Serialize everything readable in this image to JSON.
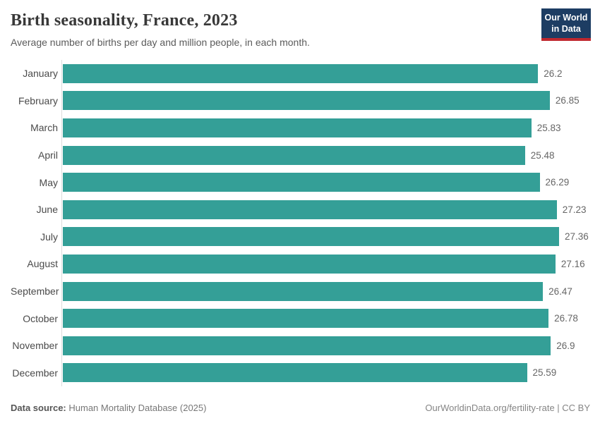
{
  "header": {
    "title": "Birth seasonality, France, 2023",
    "subtitle": "Average number of births per day and million people, in each month.",
    "logo": {
      "line1": "Our World",
      "line2": "in Data"
    }
  },
  "chart_data": {
    "type": "bar",
    "orientation": "horizontal",
    "title": "Birth seasonality, France, 2023",
    "subtitle": "Average number of births per day and million people, in each month.",
    "categories": [
      "January",
      "February",
      "March",
      "April",
      "May",
      "June",
      "July",
      "August",
      "September",
      "October",
      "November",
      "December"
    ],
    "values": [
      26.2,
      26.85,
      25.83,
      25.48,
      26.29,
      27.23,
      27.36,
      27.16,
      26.47,
      26.78,
      26.9,
      25.59
    ],
    "value_labels": [
      "26.2",
      "26.85",
      "25.83",
      "25.48",
      "26.29",
      "27.23",
      "27.36",
      "27.16",
      "26.47",
      "26.78",
      "26.9",
      "25.59"
    ],
    "xlabel": "",
    "ylabel": "",
    "xlim": [
      0,
      27.36
    ],
    "grid": false,
    "legend": false,
    "bar_color": "#349f97",
    "axis_color": "#dddddd"
  },
  "footer": {
    "source_label": "Data source:",
    "source_value": "Human Mortality Database (2025)",
    "link": "OurWorldinData.org/fertility-rate | CC BY"
  },
  "colors": {
    "bar": "#349f97",
    "axis": "#dddddd",
    "logo_navy": "#1d3d63",
    "logo_red": "#c0282e",
    "title_text": "#383838",
    "subtitle_text": "#5b5b5b",
    "label_text": "#4a4a4a",
    "value_text": "#666666"
  }
}
